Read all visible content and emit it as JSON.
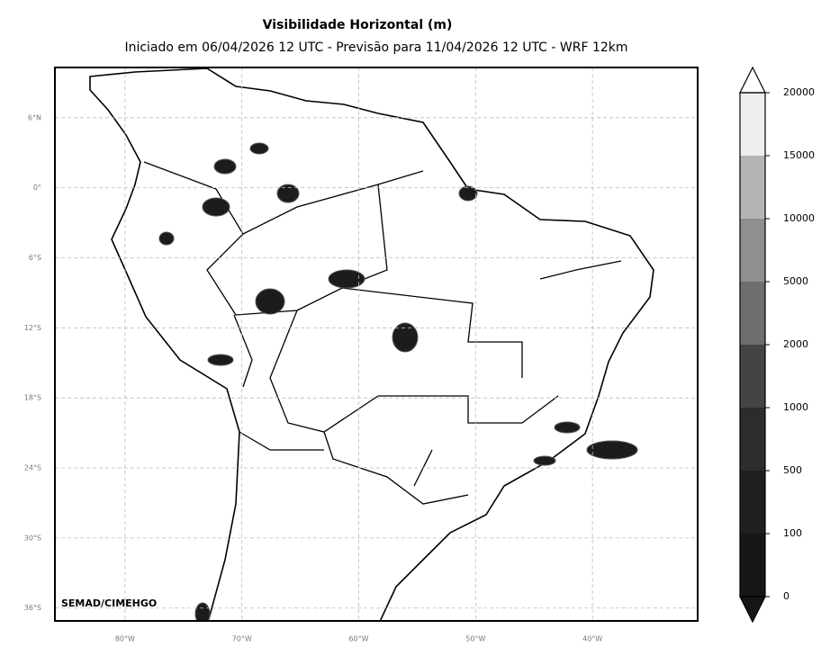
{
  "title": "Visibilidade Horizontal (m)",
  "subtitle": "Iniciado em 06/04/2026 12 UTC - Previsão para 11/04/2026 12 UTC - WRF 12km",
  "credit": "SEMAD/CIMEHGO",
  "map": {
    "xlim": [
      -86,
      -31
    ],
    "ylim": [
      -37.1,
      10.3
    ],
    "grid": true,
    "xticks": [
      {
        "value": -80,
        "label": "80°W"
      },
      {
        "value": -70,
        "label": "70°W"
      },
      {
        "value": -60,
        "label": "60°W"
      },
      {
        "value": -50,
        "label": "50°W"
      },
      {
        "value": -40,
        "label": "40°W"
      }
    ],
    "yticks": [
      {
        "value": 6,
        "label": "6°N"
      },
      {
        "value": 0,
        "label": "0°"
      },
      {
        "value": -6,
        "label": "6°S"
      },
      {
        "value": -12,
        "label": "12°S"
      },
      {
        "value": -18,
        "label": "18°S"
      },
      {
        "value": -24,
        "label": "24°S"
      },
      {
        "value": -30,
        "label": "30°S"
      },
      {
        "value": -36,
        "label": "36°S"
      }
    ]
  },
  "colorbar": {
    "levels": [
      0,
      100,
      500,
      1000,
      2000,
      5000,
      10000,
      15000,
      20000
    ],
    "colors": [
      "#161616",
      "#1f1f1f",
      "#2c2c2c",
      "#444444",
      "#6e6e6e",
      "#8f8f8f",
      "#b4b4b4",
      "#eeeeee"
    ],
    "extend_colors": [
      "#161616",
      "#ffffff"
    ]
  }
}
